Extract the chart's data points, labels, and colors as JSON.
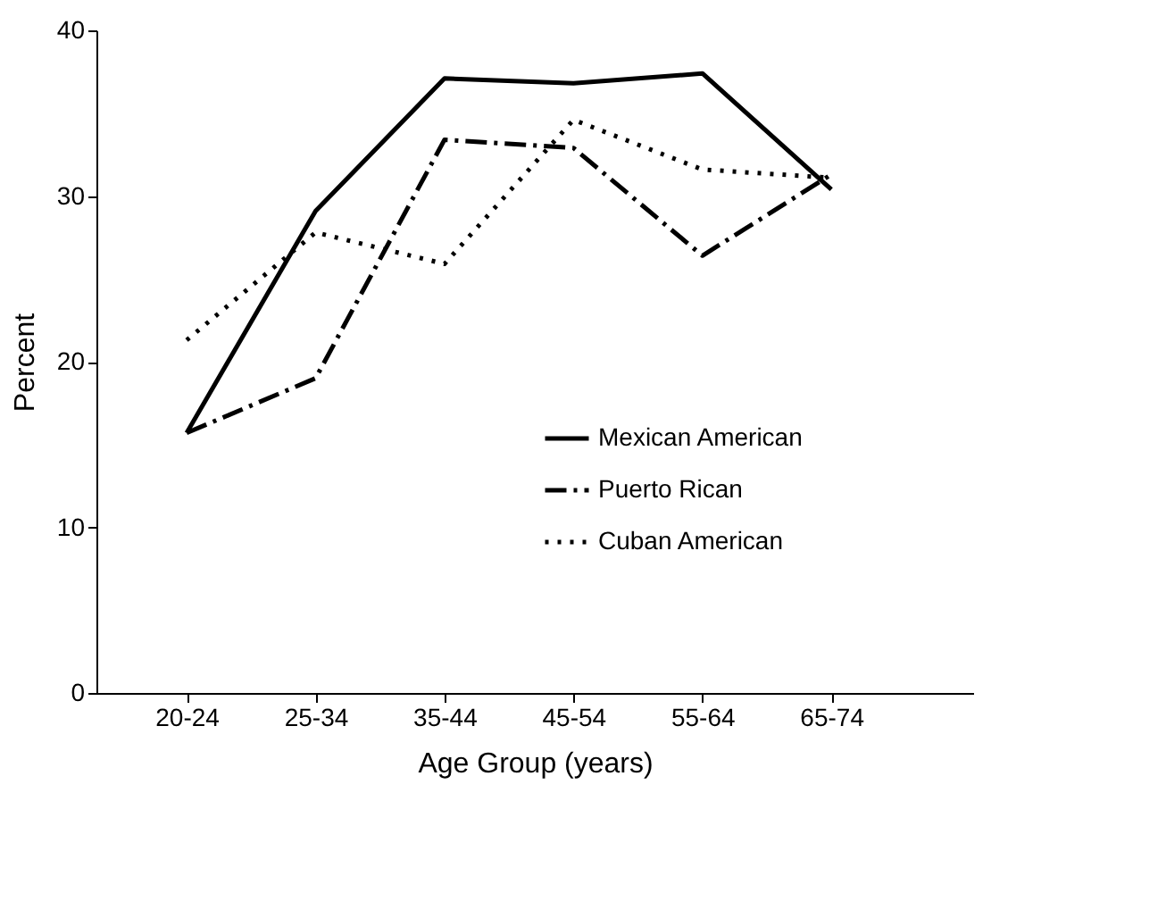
{
  "chart_data": {
    "type": "line",
    "xlabel": "Age Group (years)",
    "ylabel": "Percent",
    "categories": [
      "20-24",
      "25-34",
      "35-44",
      "45-54",
      "55-64",
      "65-74"
    ],
    "series": [
      {
        "name": "Mexican American",
        "color": "#000000",
        "line_style": "solid",
        "values": [
          15.7,
          29.1,
          37.1,
          36.8,
          37.4,
          30.4
        ]
      },
      {
        "name": "Puerto Rican",
        "color": "#000000",
        "line_style": "dashdot",
        "values": [
          15.7,
          19.0,
          33.4,
          32.9,
          26.4,
          31.3
        ]
      },
      {
        "name": "Cuban American",
        "color": "#000000",
        "line_style": "dotted",
        "values": [
          21.3,
          27.8,
          25.9,
          34.6,
          31.6,
          31.1
        ]
      }
    ],
    "ylim": [
      0,
      40
    ],
    "yticks": [
      0,
      10,
      20,
      30,
      40
    ],
    "grid": false,
    "legend": "right",
    "marker": "none"
  }
}
